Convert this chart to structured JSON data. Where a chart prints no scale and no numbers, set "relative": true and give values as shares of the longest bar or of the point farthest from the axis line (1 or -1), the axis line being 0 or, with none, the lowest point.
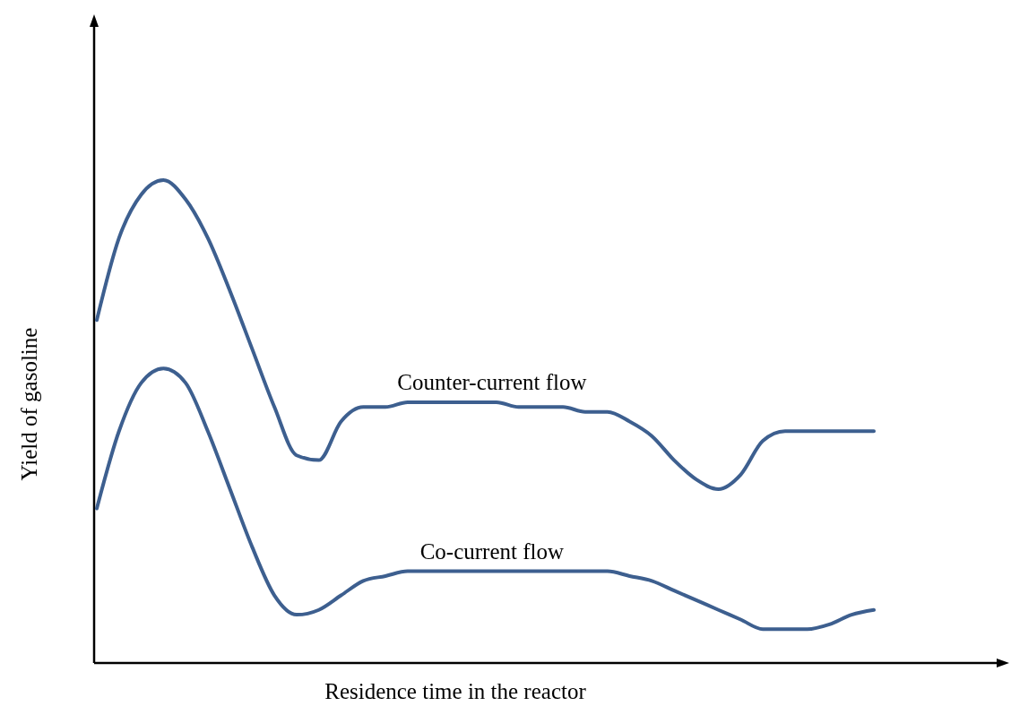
{
  "chart_data": {
    "type": "line",
    "relative": true,
    "xlabel": "Residence time in the reactor",
    "ylabel": "Yield of gasoline",
    "categories": [
      null,
      null,
      null,
      null,
      null,
      null,
      null,
      null,
      null,
      null,
      null,
      null,
      null,
      null,
      null,
      null,
      null,
      null,
      null,
      null,
      null,
      null,
      null,
      null,
      null,
      null,
      null,
      null,
      null,
      null,
      null,
      null,
      null,
      null,
      null,
      null
    ],
    "series": [
      {
        "name": "Counter-current flow",
        "color": "#3d5f8f",
        "values": [
          0.71,
          0.88,
          0.97,
          1.0,
          0.96,
          0.88,
          0.77,
          0.65,
          0.53,
          0.43,
          0.42,
          0.5,
          0.53,
          0.53,
          0.54,
          0.54,
          0.54,
          0.54,
          0.54,
          0.53,
          0.53,
          0.53,
          0.52,
          0.52,
          0.5,
          0.47,
          0.42,
          0.38,
          0.36,
          0.39,
          0.46,
          0.48,
          0.48,
          0.48,
          0.48,
          0.48
        ]
      },
      {
        "name": "Co-current flow",
        "color": "#3d5f8f",
        "values": [
          0.32,
          0.48,
          0.58,
          0.61,
          0.58,
          0.48,
          0.36,
          0.24,
          0.14,
          0.1,
          0.11,
          0.14,
          0.17,
          0.18,
          0.19,
          0.19,
          0.19,
          0.19,
          0.19,
          0.19,
          0.19,
          0.19,
          0.19,
          0.19,
          0.18,
          0.17,
          0.15,
          0.13,
          0.11,
          0.09,
          0.07,
          0.07,
          0.07,
          0.08,
          0.1,
          0.11
        ]
      }
    ]
  }
}
